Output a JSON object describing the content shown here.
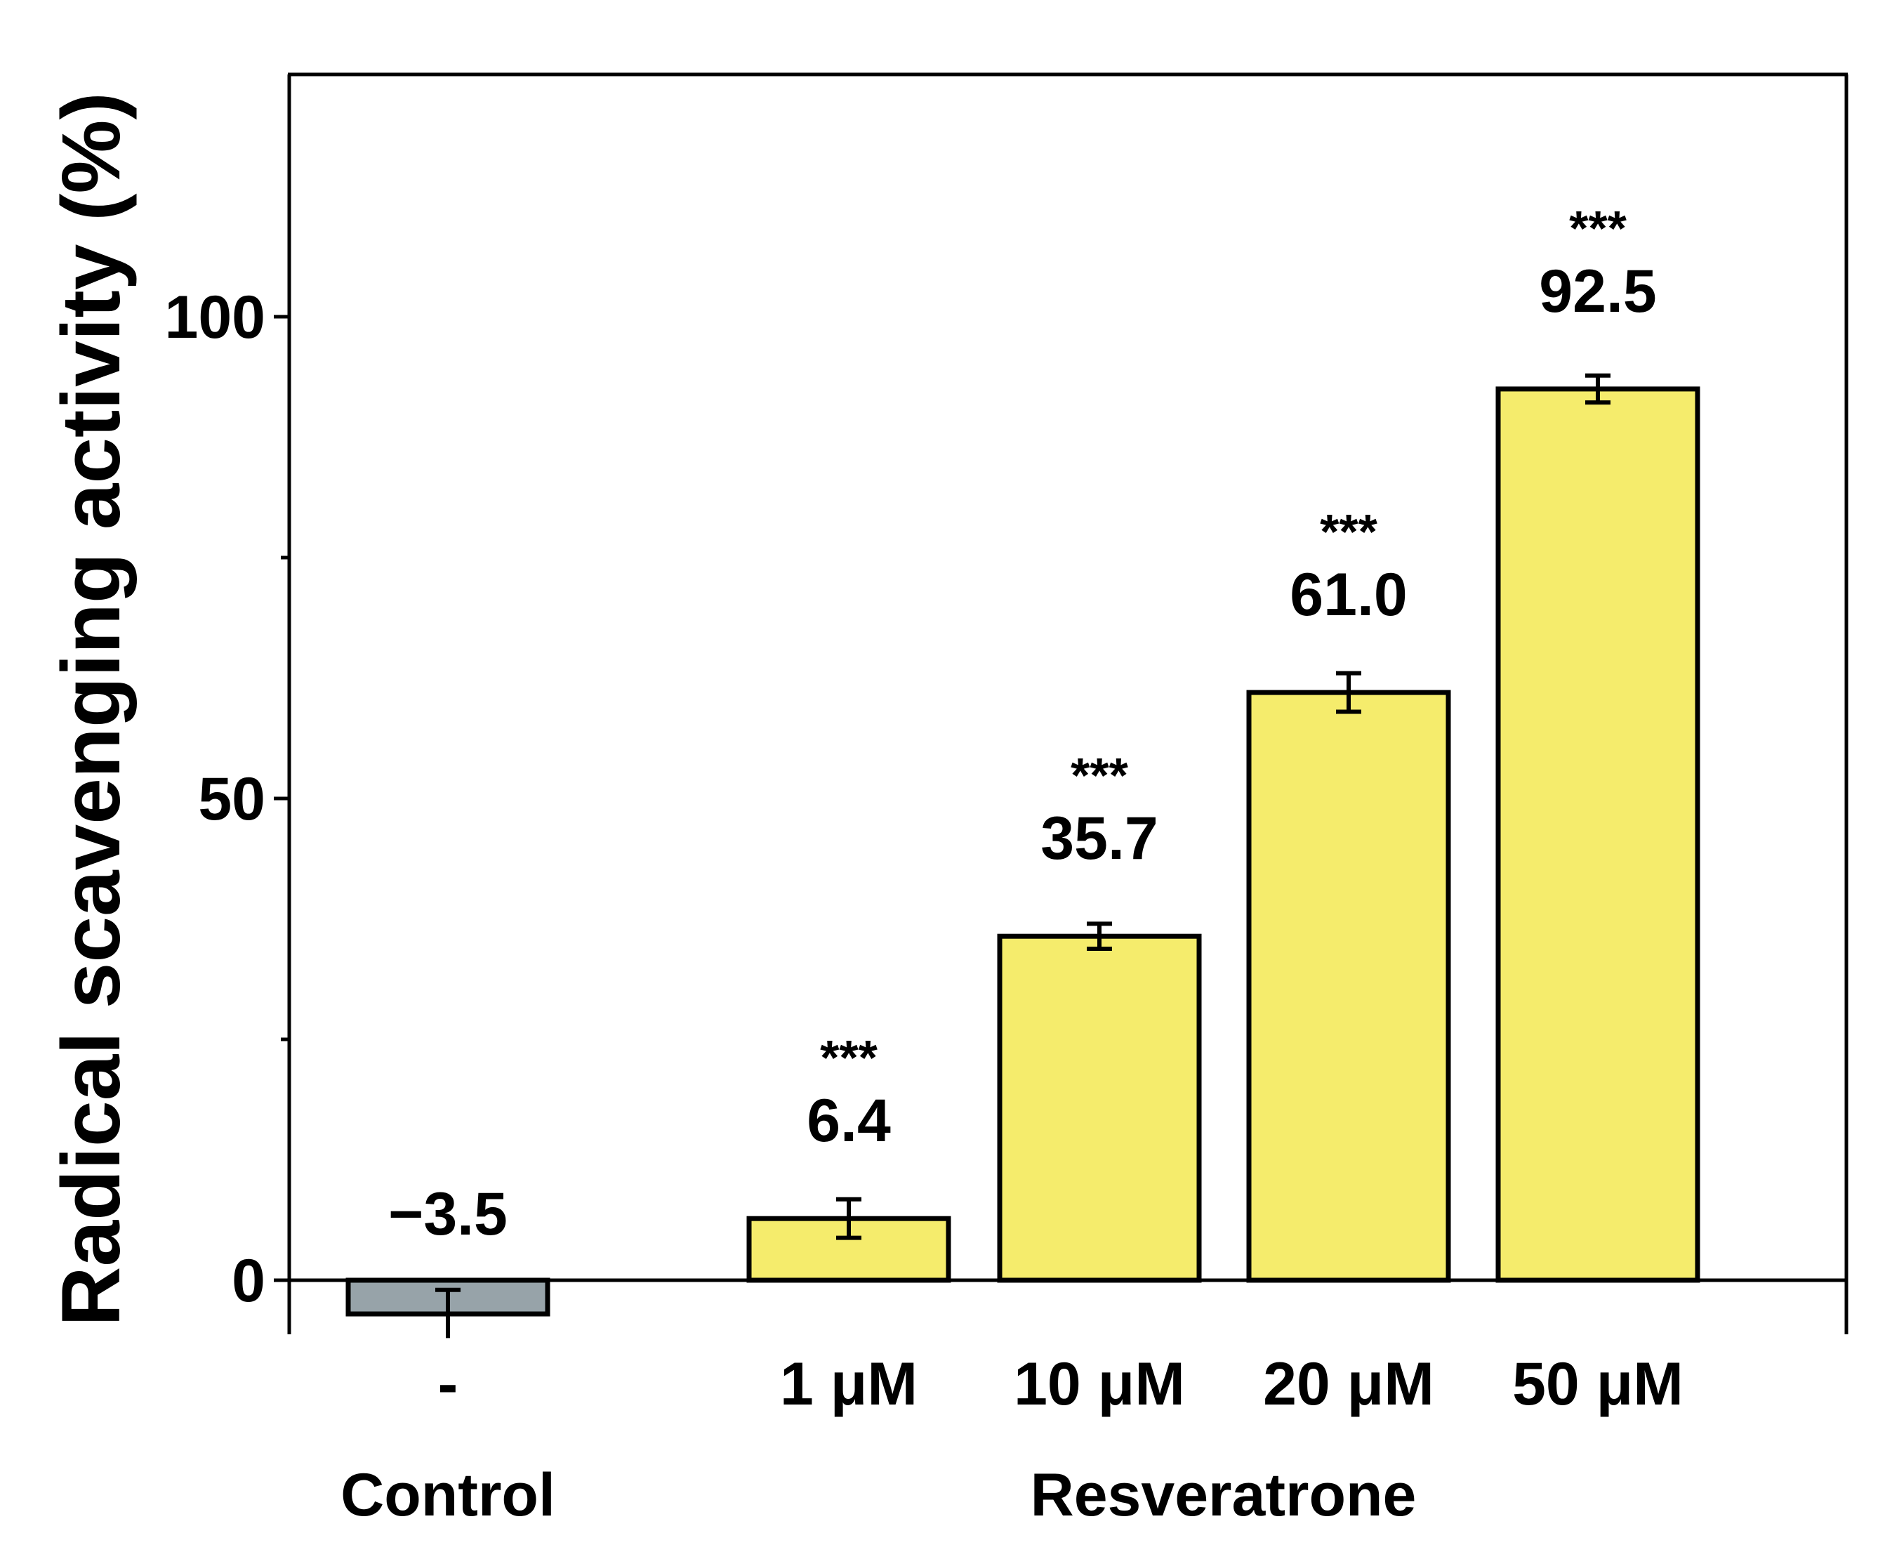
{
  "chart_data": {
    "type": "bar",
    "title": "",
    "ylabel": "Radical scavenging activity (%)",
    "xlabel": "",
    "ylim": [
      -10,
      125
    ],
    "yticks": [
      0,
      50,
      100
    ],
    "yminor_ticks": [
      25,
      75
    ],
    "categories": [
      "-",
      "1 μM",
      "10 μM",
      "20 μM",
      "50 μM"
    ],
    "values": [
      -3.5,
      6.4,
      35.7,
      61.0,
      92.5
    ],
    "value_labels": [
      "−3.5",
      "6.4",
      "35.7",
      "61.0",
      "92.5"
    ],
    "errors": [
      2.5,
      2.0,
      1.3,
      2.0,
      1.4
    ],
    "significance": [
      "",
      "***",
      "***",
      "***",
      "***"
    ],
    "colors": [
      "#97a3a9",
      "#f5ec6c",
      "#f5ec6c",
      "#f5ec6c",
      "#f5ec6c"
    ],
    "groups": [
      {
        "label": "Control",
        "categories": [
          0
        ]
      },
      {
        "label": "Resveratrone",
        "categories": [
          1,
          2,
          3,
          4
        ]
      }
    ]
  }
}
